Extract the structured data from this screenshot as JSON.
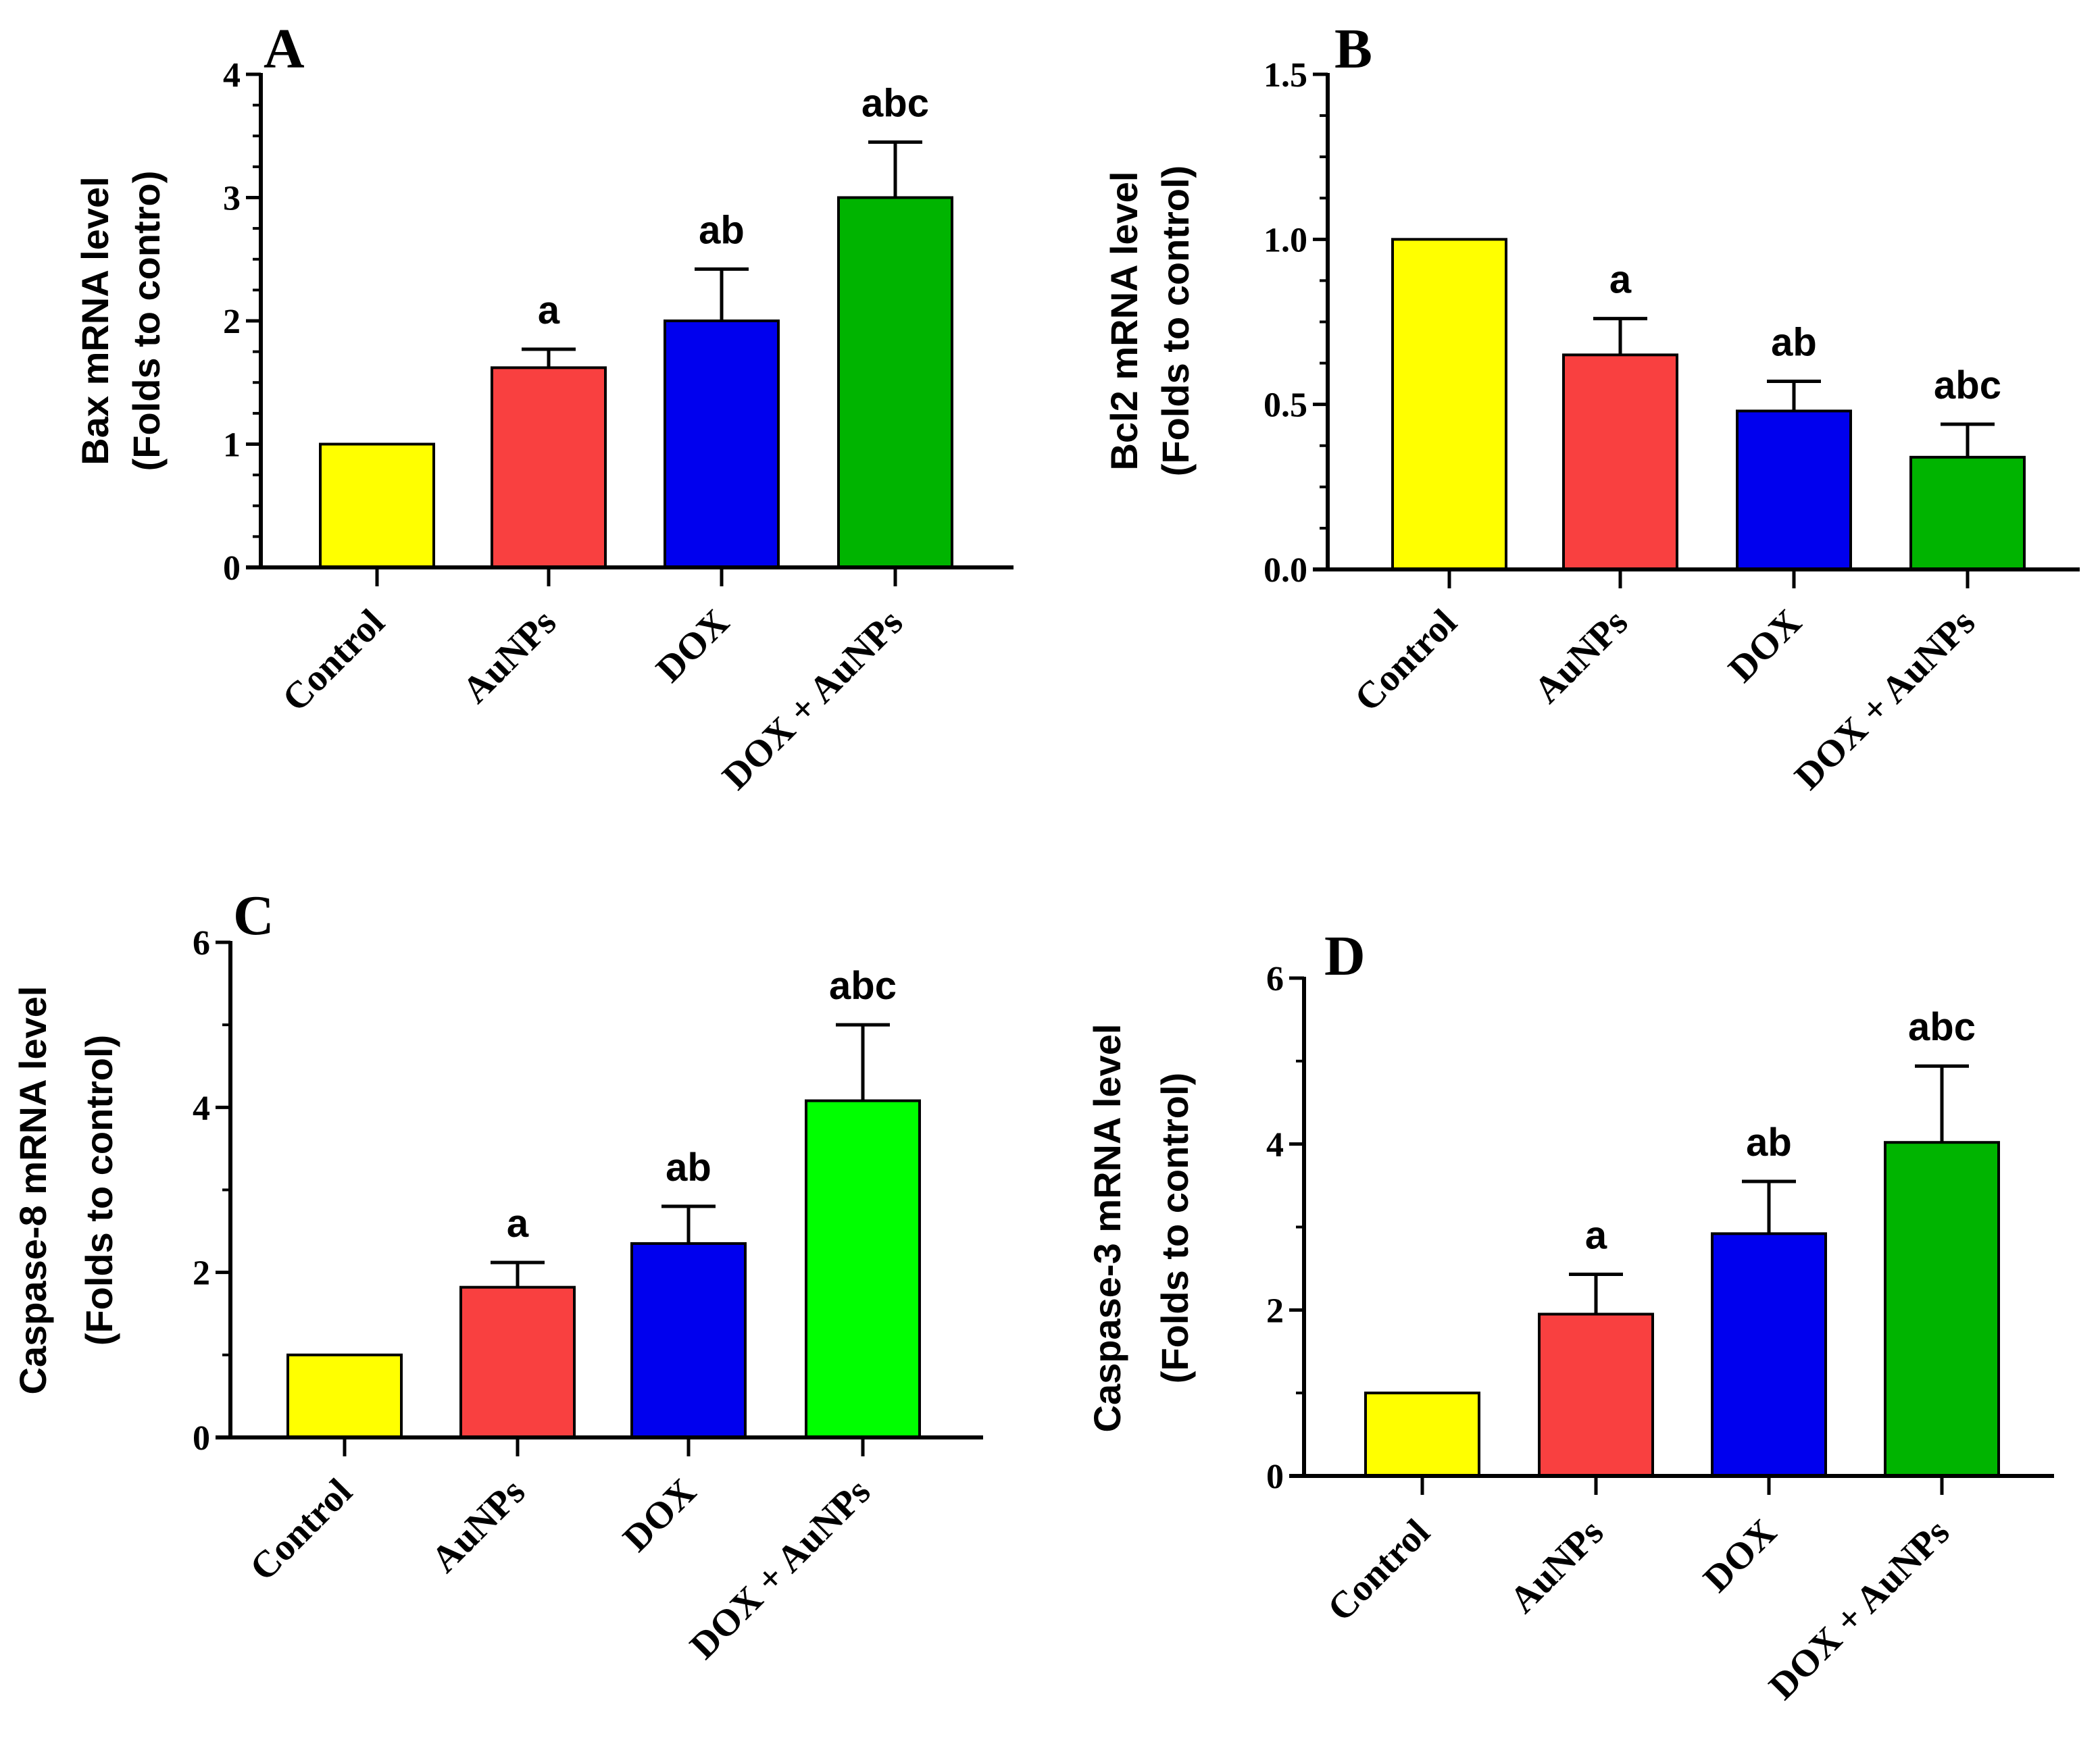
{
  "colors": {
    "control": "#ffff00",
    "aunps": "#f94040",
    "dox": "#0000ee",
    "dox_aunps_dark": "#00b400",
    "dox_aunps_light": "#00ff00",
    "axis": "#000000"
  },
  "chart_data": [
    {
      "panel": "A",
      "type": "bar",
      "categories": [
        "Control",
        "AuNPs",
        "DOX",
        "DOX + AuNPs"
      ],
      "values": [
        1.0,
        1.62,
        2.0,
        3.0
      ],
      "errors": [
        0.0,
        0.15,
        0.42,
        0.45
      ],
      "significance": [
        "",
        "a",
        "ab",
        "abc"
      ],
      "ylabel_line1": "Bax mRNA level",
      "ylabel_line2": "(Folds to contro)",
      "ylim": [
        0,
        4
      ],
      "ticks": [
        0,
        1,
        2,
        3,
        4
      ],
      "tick_labels": [
        "0",
        "1",
        "2",
        "3",
        "4"
      ],
      "minor_per_major": 4,
      "bar_colors": [
        "#ffff00",
        "#f94040",
        "#0000ee",
        "#00b400"
      ]
    },
    {
      "panel": "B",
      "type": "bar",
      "categories": [
        "Control",
        "AuNPs",
        "DOX",
        "DOX + AuNPs"
      ],
      "values": [
        1.0,
        0.65,
        0.48,
        0.34
      ],
      "errors": [
        0.0,
        0.11,
        0.09,
        0.1
      ],
      "significance": [
        "",
        "a",
        "ab",
        "abc"
      ],
      "ylabel_line1": "Bcl2 mRNA level",
      "ylabel_line2": "(Folds to control)",
      "ylim": [
        0,
        1.5
      ],
      "ticks": [
        0,
        0.5,
        1.0,
        1.5
      ],
      "tick_labels": [
        "0.0",
        "0.5",
        "1.0",
        "1.5"
      ],
      "minor_per_major": 4,
      "bar_colors": [
        "#ffff00",
        "#f94040",
        "#0000ee",
        "#00b400"
      ]
    },
    {
      "panel": "C",
      "type": "bar",
      "categories": [
        "Control",
        "AuNPs",
        "DOX",
        "DOX + AuNPs"
      ],
      "values": [
        1.0,
        1.82,
        2.35,
        4.08
      ],
      "errors": [
        0.0,
        0.3,
        0.45,
        0.92
      ],
      "significance": [
        "",
        "a",
        "ab",
        "abc"
      ],
      "ylabel_line1": "Caspase-8 mRNA level",
      "ylabel_line2": "(Folds to control)",
      "ylim": [
        0,
        6
      ],
      "ticks": [
        0,
        2,
        4,
        6
      ],
      "tick_labels": [
        "0",
        "2",
        "4",
        "6"
      ],
      "minor_per_major": 2,
      "bar_colors": [
        "#ffff00",
        "#f94040",
        "#0000ee",
        "#00ff00"
      ]
    },
    {
      "panel": "D",
      "type": "bar",
      "categories": [
        "Control",
        "AuNPs",
        "DOX",
        "DOX + AuNPs"
      ],
      "values": [
        1.0,
        1.95,
        2.92,
        4.02
      ],
      "errors": [
        0.0,
        0.48,
        0.63,
        0.92
      ],
      "significance": [
        "",
        "a",
        "ab",
        "abc"
      ],
      "ylabel_line1": "Caspase-3 mRNA level",
      "ylabel_line2": "(Folds to control)",
      "ylim": [
        0,
        6
      ],
      "ticks": [
        0,
        2,
        4,
        6
      ],
      "tick_labels": [
        "0",
        "2",
        "4",
        "6"
      ],
      "minor_per_major": 2,
      "bar_colors": [
        "#ffff00",
        "#f94040",
        "#0000ee",
        "#00b400"
      ]
    }
  ]
}
